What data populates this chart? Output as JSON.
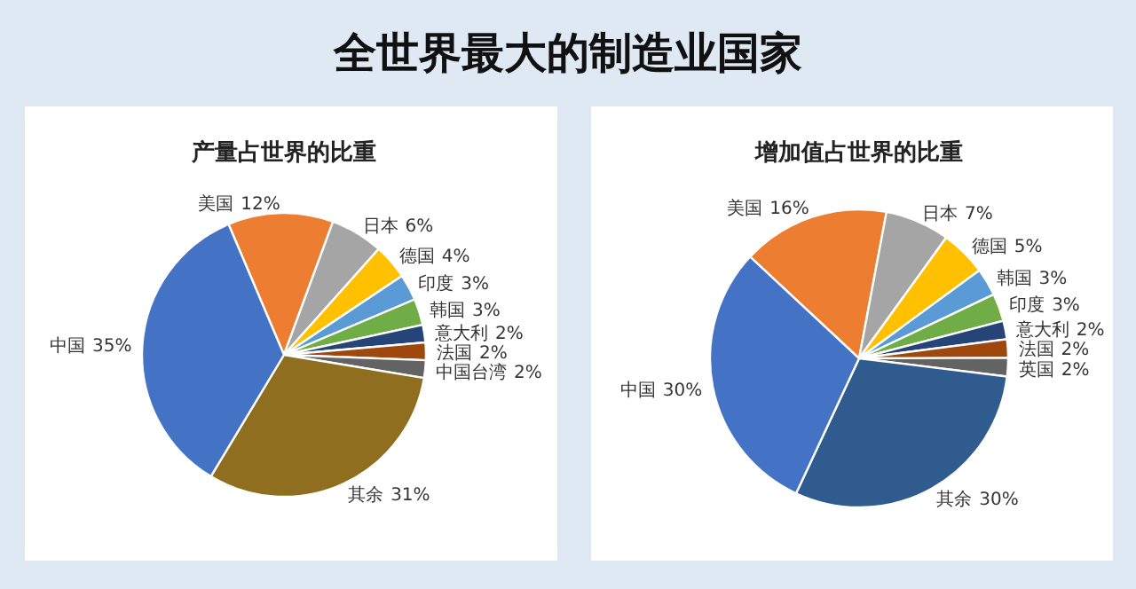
{
  "chart_data": [
    {
      "type": "other",
      "title": "全世界最大的制造业国家"
    },
    {
      "type": "pie",
      "title": "产量占世界的比重",
      "categories": [
        "美国",
        "日本",
        "德国",
        "印度",
        "韩国",
        "意大利",
        "法国",
        "中国台湾",
        "其余",
        "中国"
      ],
      "values": [
        12,
        6,
        4,
        3,
        3,
        2,
        2,
        2,
        31,
        35
      ],
      "value_labels": [
        "12%",
        "6%",
        "4%",
        "3%",
        "3%",
        "2%",
        "2%",
        "2%",
        "31%",
        "35%"
      ],
      "colors": [
        "#ed7d31",
        "#a5a5a5",
        "#ffc000",
        "#5b9bd5",
        "#70ad47",
        "#264478",
        "#9e480e",
        "#636363",
        "#8f6e1f",
        "#4472c4"
      ]
    },
    {
      "type": "pie",
      "title": "增加值占世界的比重",
      "categories": [
        "美国",
        "日本",
        "德国",
        "韩国",
        "印度",
        "意大利",
        "法国",
        "英国",
        "其余",
        "中国"
      ],
      "values": [
        16,
        7,
        5,
        3,
        3,
        2,
        2,
        2,
        30,
        30
      ],
      "value_labels": [
        "16%",
        "7%",
        "5%",
        "3%",
        "3%",
        "2%",
        "2%",
        "2%",
        "30%",
        "30%"
      ],
      "colors": [
        "#ed7d31",
        "#a5a5a5",
        "#ffc000",
        "#5b9bd5",
        "#70ad47",
        "#264478",
        "#9e480e",
        "#636363",
        "#2f5b8f",
        "#4472c4"
      ]
    }
  ]
}
